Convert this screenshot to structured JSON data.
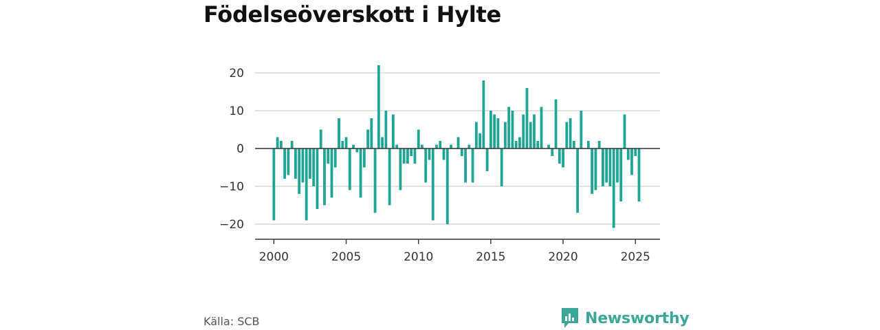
{
  "chart_data": {
    "type": "bar",
    "title": "Födelseöverskott i Hylte",
    "source": "Källa: SCB",
    "brand": "Newsworthy",
    "xlabel": "",
    "ylabel": "",
    "ylim": [
      -24,
      24
    ],
    "yticks": [
      20,
      10,
      0,
      -10,
      -20
    ],
    "ytick_labels": [
      "20",
      "10",
      "0",
      "−10",
      "−20"
    ],
    "xlim": [
      1998.7,
      2026.7
    ],
    "xticks": [
      2000,
      2005,
      2010,
      2015,
      2020,
      2025
    ],
    "xtick_labels": [
      "2000",
      "2005",
      "2010",
      "2015",
      "2020",
      "2025"
    ],
    "grid": true,
    "bar_color": "#1ea596",
    "x_start": 2000.0,
    "x_step": 0.25,
    "values": [
      -19,
      3,
      2,
      -8,
      -7,
      2,
      -8,
      -12,
      -9,
      -19,
      -8,
      -10,
      -16,
      5,
      -15,
      -4,
      -13,
      -5,
      8,
      2,
      3,
      -11,
      1,
      -1,
      -13,
      -5,
      5,
      8,
      -17,
      22,
      3,
      10,
      -15,
      9,
      1,
      -11,
      -4,
      -4,
      -2,
      -4,
      5,
      1,
      -9,
      -3,
      -19,
      1,
      2,
      -3,
      -20,
      1,
      0,
      3,
      -2,
      -9,
      1,
      -9,
      7,
      4,
      18,
      -6,
      10,
      9,
      8,
      -10,
      7,
      11,
      10,
      2,
      3,
      9,
      16,
      7,
      9,
      2,
      11,
      0,
      1,
      -2,
      13,
      -4,
      -5,
      7,
      8,
      2,
      -17,
      10,
      0,
      2,
      -12,
      -11,
      2,
      -10,
      -9,
      -10,
      -21,
      -9,
      -14,
      9,
      -3,
      -7,
      -2,
      -14
    ]
  }
}
